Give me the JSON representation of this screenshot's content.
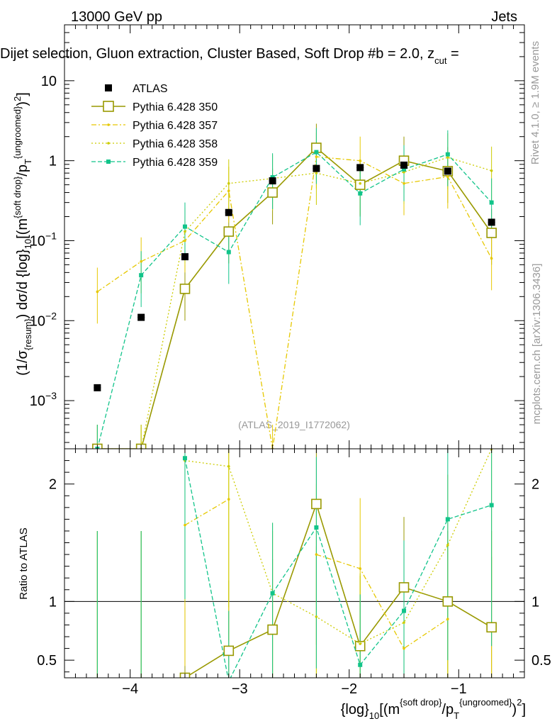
{
  "header": {
    "left": "13000 GeV pp",
    "right": "Jets",
    "title": "Dijet selection, Gluon extraction, Cluster Based, Soft Drop #b = 2.0, z",
    "title_sub": "cut",
    "title_tail": " ="
  },
  "side_labels": {
    "rivet": "Rivet 4.1.0, ≥ 1.9M events",
    "mcplots": "mcplots.cern.ch [arXiv:1306.3436]"
  },
  "watermark": "(ATLAS_2019_I1772062)",
  "ylabel_top": {
    "pre": "(1/σ",
    "sub1": "{resum}",
    "mid": ") dσ/d {log}",
    "sub2": "10",
    "mid2": "[(m",
    "sup1": "{soft drop}",
    "mid3": "/p",
    "sub3": "T",
    "sup2": "{ungroomed}",
    "end": ")",
    "sup3": "2",
    "tail": "]"
  },
  "ylabel_bottom": "Ratio to ATLAS",
  "xlabel": {
    "pre": "{log}",
    "sub1": "10",
    "mid": "[(m",
    "sup1": "{soft drop}",
    "mid2": "/p",
    "sub2": "T",
    "sup2": "{ungroomed}",
    "end": ")",
    "sup3": "2",
    "tail": "]"
  },
  "colors": {
    "atlas": "#000000",
    "p350": "#999900",
    "p357": "#e6c800",
    "p358": "#cccc00",
    "p359": "#11c48a"
  },
  "chart_data": {
    "type": "scatter",
    "x": [
      -4.3,
      -3.9,
      -3.5,
      -3.1,
      -2.7,
      -2.3,
      -1.9,
      -1.5,
      -1.1,
      -0.7
    ],
    "xlim": [
      -4.6,
      -0.4
    ],
    "x_ticks": [
      -4,
      -3,
      -2,
      -1
    ],
    "x_tick_labels": [
      "−4",
      "−3",
      "−2",
      "−1"
    ],
    "main_panel": {
      "yscale": "log",
      "ylim": [
        0.00025,
        50
      ],
      "y_ticks": [
        0.001,
        0.01,
        0.1,
        1,
        10
      ],
      "y_tick_labels": [
        {
          "base": "10",
          "exp": "−3"
        },
        {
          "base": "10",
          "exp": "−2"
        },
        {
          "base": "10",
          "exp": "−1"
        },
        {
          "base": "1",
          "exp": ""
        },
        {
          "base": "10",
          "exp": ""
        }
      ]
    },
    "ratio_panel": {
      "ylim": [
        0.35,
        2.3
      ],
      "y_ticks": [
        0.5,
        1,
        2
      ],
      "y_tick_labels": [
        "0.5",
        "1",
        "2"
      ]
    },
    "series": [
      {
        "name": "ATLAS",
        "key": "atlas",
        "style": "data",
        "values": [
          0.00145,
          0.011,
          0.063,
          0.225,
          0.56,
          0.8,
          0.82,
          0.88,
          0.74,
          0.17
        ]
      },
      {
        "name": "Pythia 6.428 350",
        "key": "p350",
        "style": "solid",
        "values": [
          0.00025,
          0.00025,
          0.025,
          0.13,
          0.4,
          1.45,
          0.5,
          1.0,
          0.74,
          0.125
        ],
        "ratio": [
          null,
          null,
          0.35,
          0.58,
          0.76,
          1.83,
          0.62,
          1.12,
          1.0,
          0.78
        ]
      },
      {
        "name": "Pythia 6.428 357",
        "key": "p357",
        "style": "dashdot",
        "values": [
          0.023,
          0.055,
          0.1,
          0.42,
          0.00025,
          1.12,
          1.0,
          0.52,
          0.63,
          0.06
        ],
        "ratio": [
          null,
          null,
          1.65,
          1.87,
          null,
          1.4,
          1.28,
          0.6,
          0.85,
          null
        ]
      },
      {
        "name": "Pythia 6.428 358",
        "key": "p358",
        "style": "dotted",
        "values": [
          0.00025,
          0.00025,
          0.13,
          0.52,
          0.6,
          0.7,
          0.52,
          0.72,
          1.1,
          0.75
        ],
        "ratio": [
          null,
          null,
          2.2,
          2.15,
          1.07,
          0.87,
          0.64,
          0.82,
          1.48,
          2.3
        ]
      },
      {
        "name": "Pythia 6.428 359",
        "key": "p359",
        "style": "dashed",
        "values": [
          0.00025,
          0.037,
          0.15,
          0.072,
          0.62,
          1.28,
          0.39,
          0.78,
          1.2,
          0.3
        ],
        "ratio": [
          null,
          null,
          2.22,
          0.32,
          1.07,
          1.63,
          0.46,
          0.92,
          1.7,
          1.82
        ]
      }
    ],
    "legend": [
      "ATLAS",
      "Pythia 6.428 350",
      "Pythia 6.428 357",
      "Pythia 6.428 358",
      "Pythia 6.428 359"
    ],
    "legend_position": "top-left"
  }
}
